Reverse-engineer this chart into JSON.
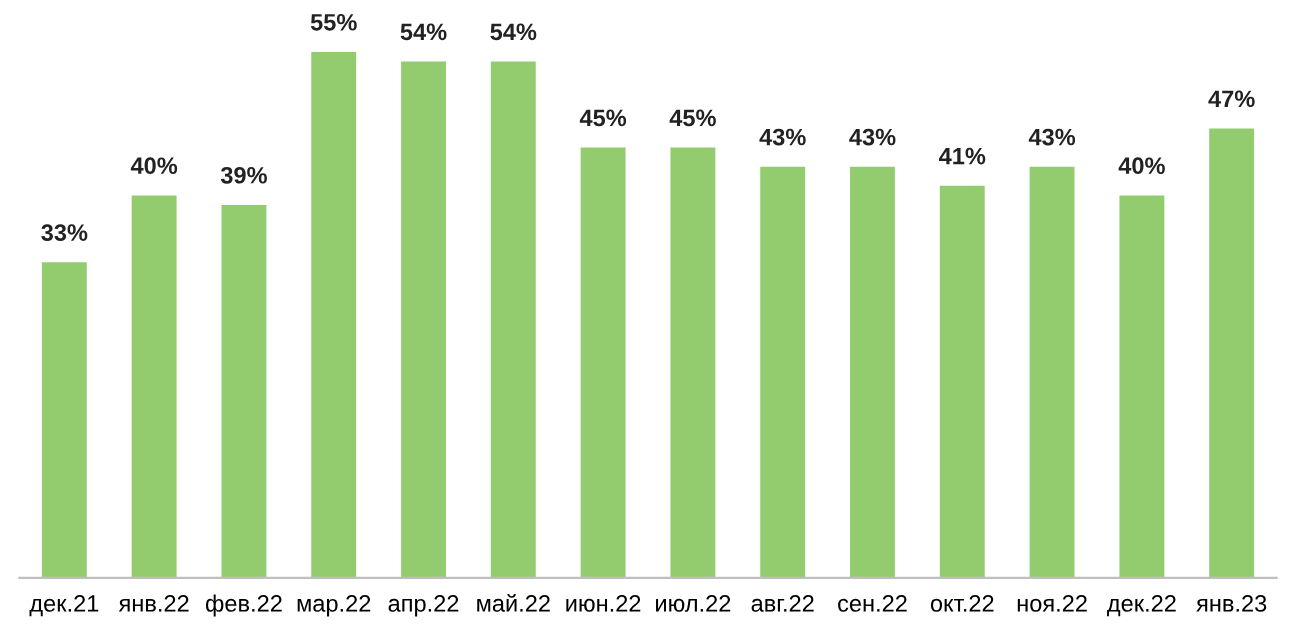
{
  "chart_data": {
    "type": "bar",
    "categories": [
      "дек.21",
      "янв.22",
      "фев.22",
      "мар.22",
      "апр.22",
      "май.22",
      "июн.22",
      "июл.22",
      "авг.22",
      "сен.22",
      "окт.22",
      "ноя.22",
      "дек.22",
      "янв.23"
    ],
    "values": [
      33,
      40,
      39,
      55,
      54,
      54,
      45,
      45,
      43,
      43,
      41,
      43,
      40,
      47
    ],
    "value_labels": [
      "33%",
      "40%",
      "39%",
      "55%",
      "54%",
      "54%",
      "45%",
      "45%",
      "43%",
      "43%",
      "41%",
      "43%",
      "40%",
      "47%"
    ],
    "color": "#92cc6f"
  }
}
